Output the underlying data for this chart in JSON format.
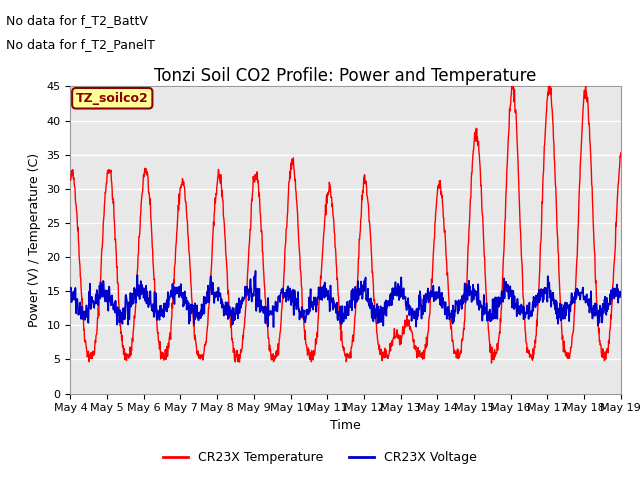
{
  "title": "Tonzi Soil CO2 Profile: Power and Temperature",
  "xlabel": "Time",
  "ylabel": "Power (V) / Temperature (C)",
  "ylim": [
    0,
    45
  ],
  "xlim": [
    0,
    15
  ],
  "x_tick_labels": [
    "May 4",
    "May 5",
    "May 6",
    "May 7",
    "May 8",
    "May 9",
    "May 10",
    "May 11",
    "May 12",
    "May 13",
    "May 14",
    "May 15",
    "May 16",
    "May 17",
    "May 18",
    "May 19"
  ],
  "no_data_texts": [
    "No data for f_T2_BattV",
    "No data for f_T2_PanelT"
  ],
  "legend_label_red": "CR23X Temperature",
  "legend_label_blue": "CR23X Voltage",
  "box_label": "TZ_soilco2",
  "red_color": "#ff0000",
  "blue_color": "#0000cc",
  "background_color": "#ffffff",
  "plot_bg_color": "#e8e8e8",
  "grid_color": "#ffffff",
  "title_fontsize": 12,
  "label_fontsize": 9,
  "tick_fontsize": 8,
  "legend_fontsize": 9,
  "nodata_fontsize": 9
}
